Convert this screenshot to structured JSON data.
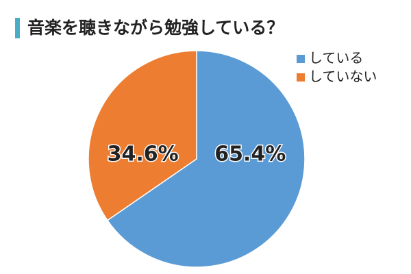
{
  "chart_data": {
    "type": "pie",
    "title": "音楽を聴きながら勉強している？",
    "categories": [
      "している",
      "していない"
    ],
    "values": [
      65.4,
      34.6
    ],
    "value_labels": [
      "65.4%",
      "34.6%"
    ],
    "colors": [
      "#5b9bd5",
      "#ed7d31"
    ],
    "legend": "upper right"
  }
}
